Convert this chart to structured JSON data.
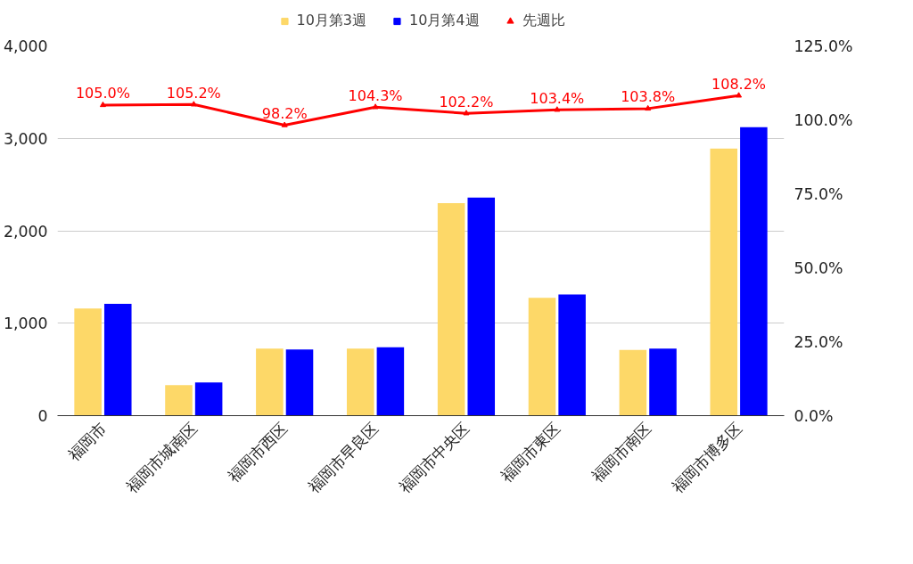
{
  "chart_data": {
    "type": "bar",
    "categories": [
      "福岡市",
      "福岡市城南区",
      "福岡市西区",
      "福岡市早良区",
      "福岡市中央区",
      "福岡市東区",
      "福岡市南区",
      "福岡市博多区"
    ],
    "series": [
      {
        "name": "10月第3週",
        "color": "#fdd868",
        "values": [
          1160,
          330,
          725,
          725,
          2300,
          1275,
          710,
          2890
        ]
      },
      {
        "name": "10月第4週",
        "color": "#0000ff",
        "values": [
          1210,
          360,
          715,
          740,
          2360,
          1310,
          725,
          3120
        ]
      },
      {
        "name": "先週比",
        "type": "line",
        "axis": "y2",
        "color": "#ff0000",
        "marker": "triangle",
        "values": [
          105.0,
          105.2,
          98.2,
          104.3,
          102.2,
          103.4,
          103.8,
          108.2
        ],
        "value_labels": [
          "105.0%",
          "105.2%",
          "98.2%",
          "104.3%",
          "102.2%",
          "103.4%",
          "103.8%",
          "108.2%"
        ]
      }
    ],
    "ylim": [
      0,
      4000
    ],
    "yticks": [
      {
        "value": 0,
        "label": "0"
      },
      {
        "value": 1000,
        "label": "1,000"
      },
      {
        "value": 2000,
        "label": "2,000"
      },
      {
        "value": 3000,
        "label": "3,000"
      },
      {
        "value": 4000,
        "label": "4,000"
      }
    ],
    "y2lim": [
      0,
      125
    ],
    "y2ticks": [
      {
        "value": 0,
        "label": "0.0%"
      },
      {
        "value": 25,
        "label": "25.0%"
      },
      {
        "value": 50,
        "label": "50.0%"
      },
      {
        "value": 75,
        "label": "75.0%"
      },
      {
        "value": 100,
        "label": "100.0%"
      },
      {
        "value": 125,
        "label": "125.0%"
      }
    ],
    "grid": "y",
    "legend": "top"
  }
}
